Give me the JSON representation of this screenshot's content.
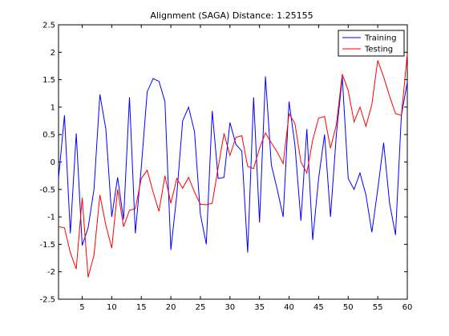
{
  "chart_data": {
    "type": "line",
    "title": "Alignment (SAGA) Distance:  1.25155",
    "xlabel": "",
    "ylabel": "",
    "xlim": [
      1,
      60
    ],
    "ylim": [
      -2.5,
      2.5
    ],
    "xticks": [
      5,
      10,
      15,
      20,
      25,
      30,
      35,
      40,
      45,
      50,
      55,
      60
    ],
    "yticks": [
      -2.5,
      -2,
      -1.5,
      -1,
      -0.5,
      0,
      0.5,
      1,
      1.5,
      2,
      2.5
    ],
    "grid": false,
    "legend_position": "top-right",
    "x": [
      1,
      2,
      3,
      4,
      5,
      6,
      7,
      8,
      9,
      10,
      11,
      12,
      13,
      14,
      15,
      16,
      17,
      18,
      19,
      20,
      21,
      22,
      23,
      24,
      25,
      26,
      27,
      28,
      29,
      30,
      31,
      32,
      33,
      34,
      35,
      36,
      37,
      38,
      39,
      40,
      41,
      42,
      43,
      44,
      45,
      46,
      47,
      48,
      49,
      50,
      51,
      52,
      53,
      54,
      55,
      56,
      57,
      58,
      59,
      60
    ],
    "series": [
      {
        "name": "Training",
        "color": "#0000ff",
        "values": [
          -0.3,
          0.85,
          -1.3,
          0.52,
          -1.52,
          -1.2,
          -0.5,
          1.23,
          0.6,
          -1.0,
          -0.28,
          -1.05,
          1.18,
          -1.3,
          -0.1,
          1.28,
          1.52,
          1.47,
          1.1,
          -1.6,
          -0.6,
          0.75,
          1.0,
          0.55,
          -0.95,
          -1.5,
          0.93,
          -0.3,
          -0.28,
          0.72,
          0.32,
          0.2,
          -1.65,
          1.18,
          -1.1,
          1.56,
          -0.05,
          -0.5,
          -1.0,
          1.1,
          0.3,
          -1.07,
          0.6,
          -1.42,
          -0.3,
          0.5,
          -1.0,
          0.5,
          1.55,
          -0.3,
          -0.5,
          -0.2,
          -0.6,
          -1.28,
          -0.5,
          0.35,
          -0.75,
          -1.33,
          0.85,
          1.45
        ]
      },
      {
        "name": "Testing",
        "color": "#ff0000",
        "values": [
          -1.18,
          -1.2,
          -1.65,
          -1.95,
          -0.65,
          -2.1,
          -1.7,
          -0.6,
          -1.15,
          -1.57,
          -0.5,
          -1.18,
          -0.88,
          -0.85,
          -0.3,
          -0.15,
          -0.55,
          -0.9,
          -0.25,
          -0.75,
          -0.3,
          -0.48,
          -0.28,
          -0.55,
          -0.77,
          -0.78,
          -0.75,
          -0.1,
          0.52,
          0.12,
          0.45,
          0.48,
          -0.08,
          -0.12,
          0.25,
          0.53,
          0.35,
          0.18,
          -0.03,
          0.88,
          0.7,
          0.0,
          -0.2,
          0.4,
          0.8,
          0.83,
          0.25,
          0.68,
          1.6,
          1.3,
          0.73,
          1.0,
          0.65,
          1.05,
          1.85,
          1.55,
          1.2,
          0.88,
          0.85,
          1.97
        ]
      }
    ]
  }
}
